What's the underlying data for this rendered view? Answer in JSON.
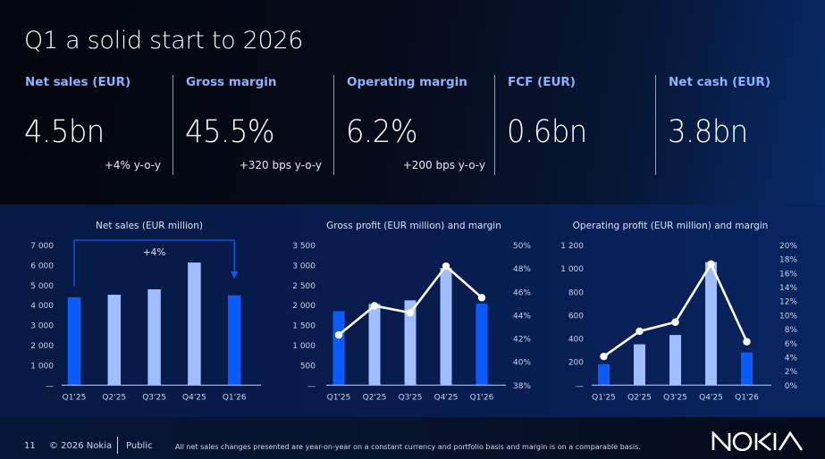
{
  "slide": {
    "title": "Q1 a solid start to 2026",
    "page_number": "11",
    "copyright": "© 2026 Nokia",
    "classification": "Public",
    "footnote": "All net sales changes presented are year-on-year on a constant currency and portfolio basis and margin is on a comparable basis.",
    "logo_text": "NOKIA"
  },
  "kpis": [
    {
      "label": "Net sales (EUR)",
      "value": "4.5bn",
      "sub": "+4% y-o-y"
    },
    {
      "label": "Gross margin",
      "value": "45.5%",
      "sub": "+320 bps y-o-y"
    },
    {
      "label": "Operating margin",
      "value": "6.2%",
      "sub": "+200 bps y-o-y"
    },
    {
      "label": "FCF (EUR)",
      "value": "0.6bn",
      "sub": ""
    },
    {
      "label": "Net cash (EUR)",
      "value": "3.8bn",
      "sub": ""
    }
  ],
  "colors": {
    "current_bar": "#0a5cff",
    "prior_bar": "#a0bdff",
    "line": "#ffffff",
    "axis": "#a0bdff",
    "tick_text": "#c8d3ea",
    "kpi_label": "#8fb2ff"
  },
  "chart_data": [
    {
      "type": "bar",
      "title": "Net sales (EUR million)",
      "categories": [
        "Q1'25",
        "Q2'25",
        "Q3'25",
        "Q4'25",
        "Q1'26"
      ],
      "values": [
        4390,
        4520,
        4790,
        6130,
        4490
      ],
      "highlight": [
        true,
        false,
        false,
        false,
        true
      ],
      "ylim": [
        0,
        7000
      ],
      "yticks": [
        "—",
        "1 000",
        "2 000",
        "3 000",
        "4 000",
        "5 000",
        "6 000",
        "7 000"
      ],
      "annotation": {
        "text": "+4%",
        "from": "Q1'25",
        "to": "Q1'26"
      },
      "xlabel": "",
      "ylabel": "",
      "grid": false,
      "legend": "none"
    },
    {
      "type": "bar+line",
      "title": "Gross profit (EUR million) and margin",
      "categories": [
        "Q1'25",
        "Q2'25",
        "Q3'25",
        "Q4'25",
        "Q1'26"
      ],
      "series": [
        {
          "name": "Gross profit",
          "type": "bar",
          "values": [
            1850,
            2030,
            2120,
            2930,
            2040
          ]
        },
        {
          "name": "Gross margin",
          "type": "line",
          "axis": "right",
          "values": [
            42.3,
            44.8,
            44.2,
            48.2,
            45.5
          ]
        }
      ],
      "highlight": [
        true,
        false,
        false,
        false,
        true
      ],
      "ylim": [
        0,
        3500
      ],
      "yticks": [
        "—",
        "500",
        "1 000",
        "1 500",
        "2 000",
        "2 500",
        "3 000",
        "3 500"
      ],
      "y2lim": [
        38,
        50
      ],
      "y2ticks": [
        "38%",
        "40%",
        "42%",
        "44%",
        "46%",
        "48%",
        "50%"
      ],
      "xlabel": "",
      "ylabel": "",
      "grid": false,
      "legend": "none"
    },
    {
      "type": "bar+line",
      "title": "Operating profit (EUR million) and margin",
      "categories": [
        "Q1'25",
        "Q2'25",
        "Q3'25",
        "Q4'25",
        "Q1'26"
      ],
      "series": [
        {
          "name": "Operating profit",
          "type": "bar",
          "values": [
            180,
            350,
            430,
            1055,
            280
          ]
        },
        {
          "name": "Operating margin",
          "type": "line",
          "axis": "right",
          "values": [
            4.1,
            7.7,
            9.0,
            17.3,
            6.2
          ]
        }
      ],
      "highlight": [
        true,
        false,
        false,
        false,
        true
      ],
      "ylim": [
        0,
        1200
      ],
      "yticks": [
        "—",
        "200",
        "400",
        "600",
        "800",
        "1 000",
        "1 200"
      ],
      "y2lim": [
        0,
        20
      ],
      "y2ticks": [
        "0%",
        "2%",
        "4%",
        "6%",
        "8%",
        "10%",
        "12%",
        "14%",
        "16%",
        "18%",
        "20%"
      ],
      "xlabel": "",
      "ylabel": "",
      "grid": false,
      "legend": "none"
    }
  ]
}
